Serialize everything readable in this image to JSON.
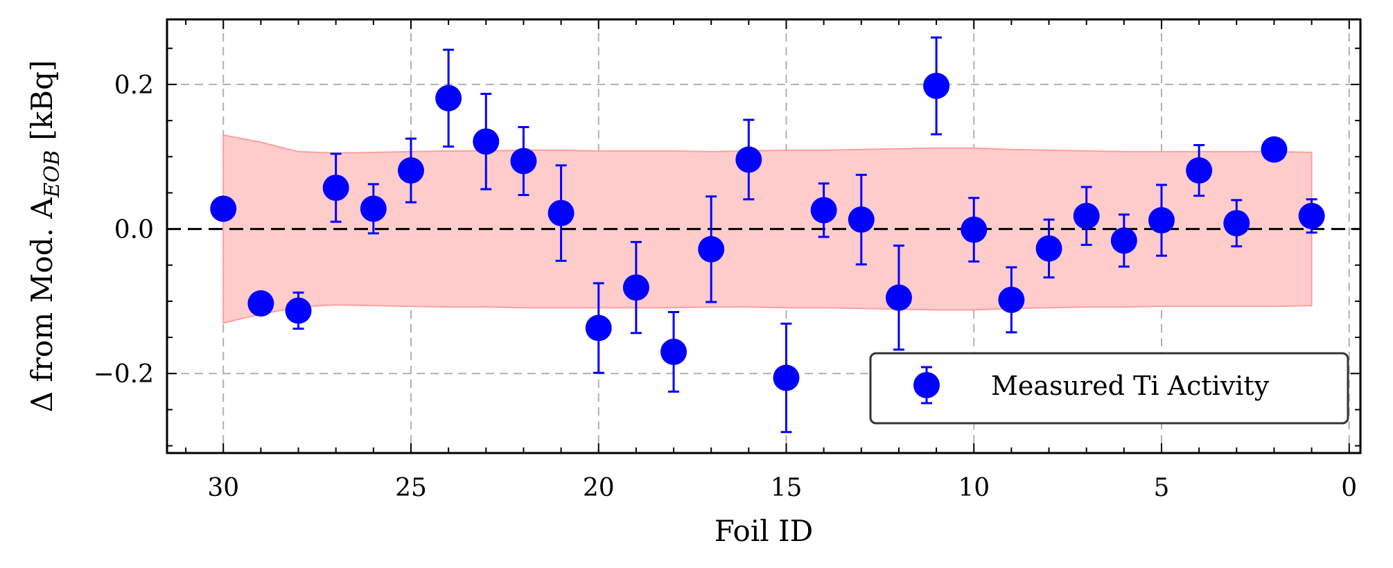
{
  "chart_data": {
    "type": "scatter",
    "xlabel": "Foil ID",
    "ylabel": "Δ from Mod. A",
    "ylabel_sub": "EOB",
    "ylabel_unit": "[kBq]",
    "xlim": [
      31.5,
      -0.3
    ],
    "ylim": [
      -0.31,
      0.29
    ],
    "x_inverted": true,
    "grid": true,
    "xticks": [
      30,
      25,
      20,
      15,
      10,
      5,
      0
    ],
    "yticks": [
      {
        "value": 0.2,
        "label": "0.2"
      },
      {
        "value": 0.0,
        "label": "0.0"
      },
      {
        "value": -0.2,
        "label": "−0.2"
      }
    ],
    "reference_line": 0.0,
    "legend": {
      "position": "lower-right",
      "entries": [
        "Measured Ti Activity"
      ]
    },
    "colors": {
      "points": "#0000ff",
      "band_fill": "#ffcccc",
      "band_edge": "#ff9f9f",
      "grid": "#b0b0b0"
    },
    "band": {
      "x": [
        30,
        29,
        28,
        27,
        26,
        25,
        24,
        23,
        22,
        21,
        20,
        19,
        18,
        17,
        16,
        15,
        14,
        13,
        12,
        11,
        10,
        9,
        8,
        7,
        6,
        5,
        4,
        3,
        2,
        1
      ],
      "upper": [
        0.13,
        0.12,
        0.107,
        0.105,
        0.106,
        0.107,
        0.108,
        0.108,
        0.109,
        0.109,
        0.108,
        0.108,
        0.108,
        0.107,
        0.108,
        0.109,
        0.109,
        0.11,
        0.111,
        0.112,
        0.112,
        0.11,
        0.109,
        0.108,
        0.107,
        0.107,
        0.107,
        0.107,
        0.107,
        0.106
      ],
      "lower": [
        -0.13,
        -0.118,
        -0.108,
        -0.105,
        -0.106,
        -0.107,
        -0.108,
        -0.108,
        -0.109,
        -0.109,
        -0.109,
        -0.109,
        -0.109,
        -0.108,
        -0.108,
        -0.109,
        -0.109,
        -0.11,
        -0.111,
        -0.112,
        -0.112,
        -0.11,
        -0.109,
        -0.108,
        -0.108,
        -0.107,
        -0.107,
        -0.107,
        -0.107,
        -0.106
      ]
    },
    "series": [
      {
        "name": "Measured Ti Activity",
        "points": [
          {
            "x": 30,
            "y": 0.028,
            "err": 0
          },
          {
            "x": 29,
            "y": -0.103,
            "err": 0
          },
          {
            "x": 28,
            "y": -0.113,
            "err": 0.025
          },
          {
            "x": 27,
            "y": 0.057,
            "err": 0.047
          },
          {
            "x": 26,
            "y": 0.028,
            "err": 0.034
          },
          {
            "x": 25,
            "y": 0.081,
            "err": 0.044
          },
          {
            "x": 24,
            "y": 0.181,
            "err": 0.067
          },
          {
            "x": 23,
            "y": 0.121,
            "err": 0.066
          },
          {
            "x": 22,
            "y": 0.094,
            "err": 0.047
          },
          {
            "x": 21,
            "y": 0.022,
            "err": 0.066
          },
          {
            "x": 20,
            "y": -0.137,
            "err": 0.062
          },
          {
            "x": 19,
            "y": -0.081,
            "err": 0.063
          },
          {
            "x": 18,
            "y": -0.17,
            "err": 0.055
          },
          {
            "x": 17,
            "y": -0.028,
            "err": 0.073
          },
          {
            "x": 16,
            "y": 0.096,
            "err": 0.055
          },
          {
            "x": 15,
            "y": -0.206,
            "err": 0.075
          },
          {
            "x": 14,
            "y": 0.026,
            "err": 0.037
          },
          {
            "x": 13,
            "y": 0.013,
            "err": 0.062
          },
          {
            "x": 12,
            "y": -0.095,
            "err": 0.072
          },
          {
            "x": 11,
            "y": 0.198,
            "err": 0.067
          },
          {
            "x": 10,
            "y": -0.001,
            "err": 0.044
          },
          {
            "x": 9,
            "y": -0.098,
            "err": 0.045
          },
          {
            "x": 8,
            "y": -0.027,
            "err": 0.04
          },
          {
            "x": 7,
            "y": 0.018,
            "err": 0.04
          },
          {
            "x": 6,
            "y": -0.016,
            "err": 0.036
          },
          {
            "x": 5,
            "y": 0.012,
            "err": 0.049
          },
          {
            "x": 4,
            "y": 0.081,
            "err": 0.035
          },
          {
            "x": 3,
            "y": 0.008,
            "err": 0.032
          },
          {
            "x": 2,
            "y": 0.11,
            "err": 0
          },
          {
            "x": 1,
            "y": 0.018,
            "err": 0.023
          }
        ]
      }
    ]
  }
}
